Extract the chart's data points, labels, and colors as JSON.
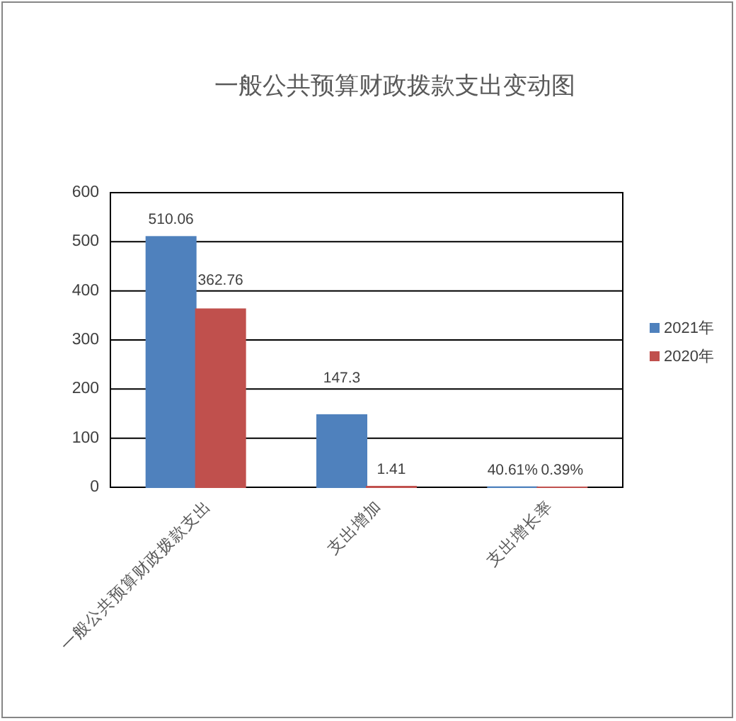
{
  "chart_data": {
    "type": "bar",
    "title": "一般公共预算财政拨款支出变动图",
    "categories": [
      "一般公共预算财政拨款支出",
      "支出增加",
      "支出增长率"
    ],
    "series": [
      {
        "name": "2021年",
        "color": "#4f81bd",
        "values": [
          510.06,
          147.3,
          0.4061
        ],
        "value_labels": [
          "510.06",
          "147.3",
          "40.61%"
        ]
      },
      {
        "name": "2020年",
        "color": "#c0504d",
        "values": [
          362.76,
          1.41,
          0.0039
        ],
        "value_labels": [
          "362.76",
          "1.41",
          "0.39%"
        ]
      }
    ],
    "ylim": [
      0,
      600
    ],
    "yticks": [
      0,
      100,
      200,
      300,
      400,
      500,
      600
    ],
    "grid": "y",
    "legend": "right"
  }
}
